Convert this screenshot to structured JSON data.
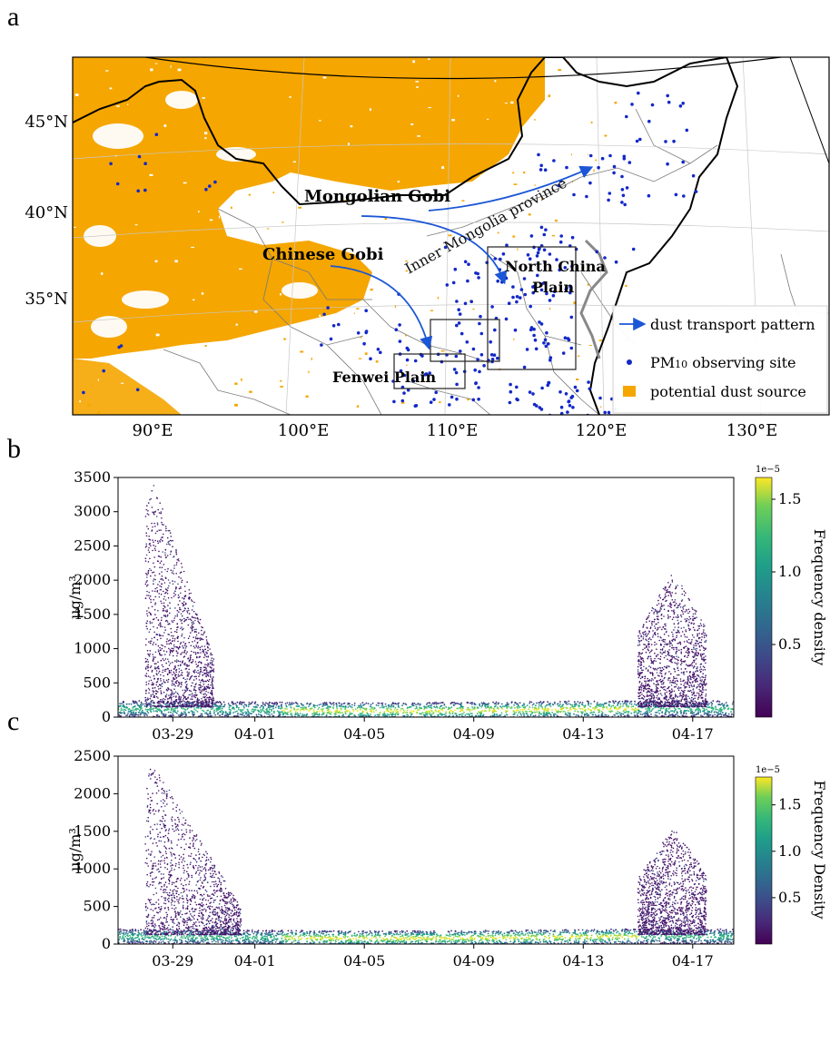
{
  "panels": {
    "a": {
      "letter": "a",
      "lat_ticks": [
        "45°N",
        "40°N",
        "35°N"
      ],
      "lon_ticks": [
        "90°E",
        "100°E",
        "110°E",
        "120°E",
        "130°E"
      ],
      "labels": {
        "mongolian_gobi": "Mongolian Gobi",
        "chinese_gobi": "Chinese Gobi",
        "inner_mongolia": "Inner Mongolia province",
        "north_china_plain_1": "North China",
        "north_china_plain_2": "Plain",
        "fenwei_plain": "Fenwei Plain"
      },
      "legend": {
        "transport": "dust transport pattern",
        "site_prefix": "PM",
        "site_sub": "10",
        "site_suffix": " observing site",
        "source": "potential dust source"
      },
      "colors": {
        "dust_source": "#f5a600",
        "arrow": "#1a56d6",
        "site": "#1428c8"
      }
    },
    "b": {
      "letter": "b"
    },
    "c": {
      "letter": "c"
    }
  },
  "chart_data": [
    {
      "panel": "b",
      "type": "scatter",
      "ylabel": "μg/m³",
      "ylim": [
        0,
        3500
      ],
      "yticks": [
        0,
        500,
        1000,
        1500,
        2000,
        2500,
        3000,
        3500
      ],
      "x_date_range": [
        "03-27",
        "04-18"
      ],
      "xticks": [
        "03-29",
        "04-01",
        "04-05",
        "04-09",
        "04-13",
        "04-17"
      ],
      "colorbar": {
        "label": "Frequency density",
        "exponent": "1e−5",
        "ticks": [
          0.5,
          1.0,
          1.5
        ],
        "max": 1.65,
        "colormap": "viridis"
      },
      "dust_events": [
        {
          "start": "03-28",
          "end": "03-30",
          "peak_date": "03-28",
          "peak_value": 3450
        },
        {
          "start": "04-15",
          "end": "04-17",
          "peak_date": "04-16",
          "peak_value": 2150
        }
      ],
      "baseline_band": [
        0,
        300
      ]
    },
    {
      "panel": "c",
      "type": "scatter",
      "ylabel": "μg/m³",
      "ylim": [
        0,
        2500
      ],
      "yticks": [
        0,
        500,
        1000,
        1500,
        2000,
        2500
      ],
      "x_date_range": [
        "03-27",
        "04-18"
      ],
      "xticks": [
        "03-29",
        "04-01",
        "04-05",
        "04-09",
        "04-13",
        "04-17"
      ],
      "colorbar": {
        "label": "Frequency Density",
        "exponent": "1e−5",
        "ticks": [
          0.5,
          1.0,
          1.5
        ],
        "max": 1.8,
        "colormap": "viridis"
      },
      "dust_events": [
        {
          "start": "03-28",
          "end": "03-31",
          "peak_date": "03-28",
          "peak_value": 2400
        },
        {
          "start": "04-15",
          "end": "04-17",
          "peak_date": "04-16",
          "peak_value": 1550
        }
      ],
      "baseline_band": [
        0,
        250
      ]
    }
  ]
}
